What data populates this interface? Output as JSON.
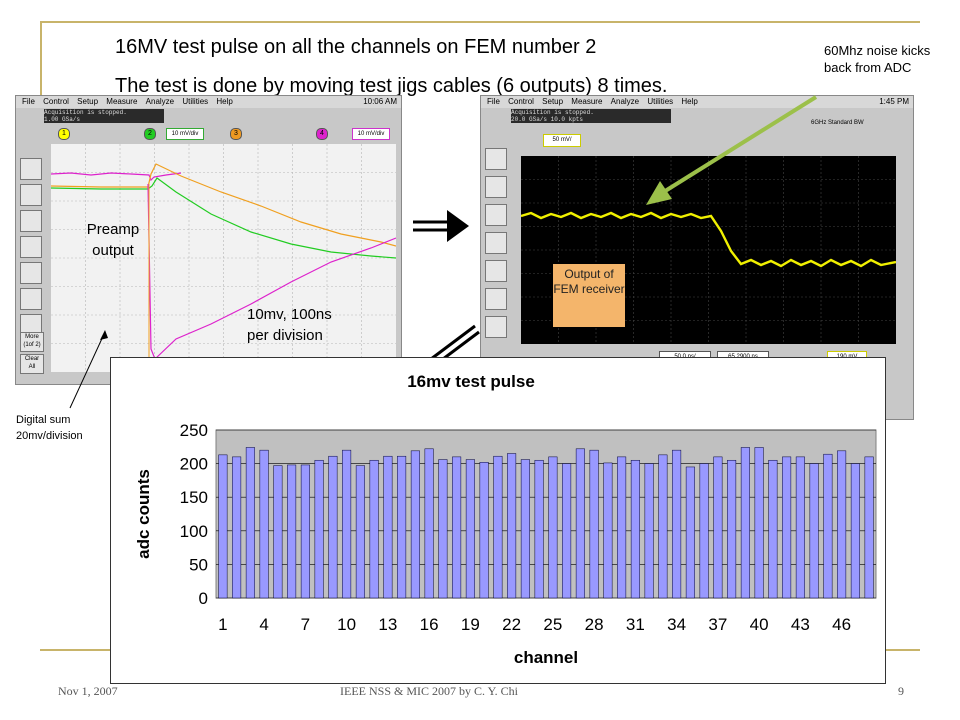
{
  "slide": {
    "title_line1": "16MV test pulse on all the channels on FEM number 2",
    "title_line2": "The test is done by moving test jigs cables (6 outputs) 8 times.",
    "noise_note": "60Mhz noise kicks back from ADC",
    "preamp_label": "Preamp output",
    "division_label": "10mv, 100ns per division",
    "digital_sum_label": "Digital sum 20mv/division",
    "fem_label": "Output of FEM receiver",
    "footer_left": "Nov 1, 2007",
    "footer_center": "IEEE NSS & MIC 2007 by C. Y. Chi",
    "footer_right": "9"
  },
  "scope_left": {
    "menu": [
      "File",
      "Control",
      "Setup",
      "Measure",
      "Analyze",
      "Utilities",
      "Help"
    ],
    "time": "10:06 AM",
    "acq_line1": "Acquisition is stopped.",
    "acq_line2": "1.00 GSa/s",
    "ch_scale": "10 mV/div",
    "more_label": "More (1of 2)",
    "clear_label": "Clear All"
  },
  "scope_right": {
    "menu": [
      "File",
      "Control",
      "Setup",
      "Measure",
      "Analyze",
      "Utilities",
      "Help"
    ],
    "time": "1:45 PM",
    "acq_line1": "Acquisition is stopped.",
    "acq_line2": "20.0 GSa/s    10.0 kpts",
    "ch_scale": "50 mV/",
    "bw_label": "6GHz Standard BW",
    "timebase": "50.0 ns/",
    "position": "65.2900 ns",
    "trigger": "190 mV"
  },
  "colors": {
    "yellow_trace": "#f0f000",
    "green_trace": "#22cc22",
    "orange_trace": "#f0a020",
    "magenta_trace": "#dd22cc",
    "bar_fill": "#9999ff",
    "plot_bg": "#c0c0c0",
    "arrow_green": "#9cc04a"
  },
  "chart_data": {
    "type": "bar",
    "title": "16mv test pulse",
    "xlabel": "channel",
    "ylabel": "adc counts",
    "ylim": [
      0,
      250
    ],
    "yticks": [
      0,
      50,
      100,
      150,
      200,
      250
    ],
    "xtick_labels": [
      "1",
      "4",
      "7",
      "10",
      "13",
      "16",
      "19",
      "22",
      "25",
      "28",
      "31",
      "34",
      "37",
      "40",
      "43",
      "46"
    ],
    "grid": "horizontal",
    "categories": [
      1,
      2,
      3,
      4,
      5,
      6,
      7,
      8,
      9,
      10,
      11,
      12,
      13,
      14,
      15,
      16,
      17,
      18,
      19,
      20,
      21,
      22,
      23,
      24,
      25,
      26,
      27,
      28,
      29,
      30,
      31,
      32,
      33,
      34,
      35,
      36,
      37,
      38,
      39,
      40,
      41,
      42,
      43,
      44,
      45,
      46,
      47,
      48
    ],
    "values": [
      213,
      210,
      224,
      220,
      197,
      198,
      198,
      205,
      211,
      220,
      197,
      205,
      211,
      211,
      219,
      222,
      206,
      210,
      206,
      202,
      211,
      215,
      206,
      205,
      210,
      200,
      222,
      220,
      201,
      210,
      205,
      200,
      213,
      220,
      195,
      200,
      210,
      205,
      224,
      224,
      205,
      210,
      210,
      200,
      214,
      219,
      200,
      210
    ]
  }
}
